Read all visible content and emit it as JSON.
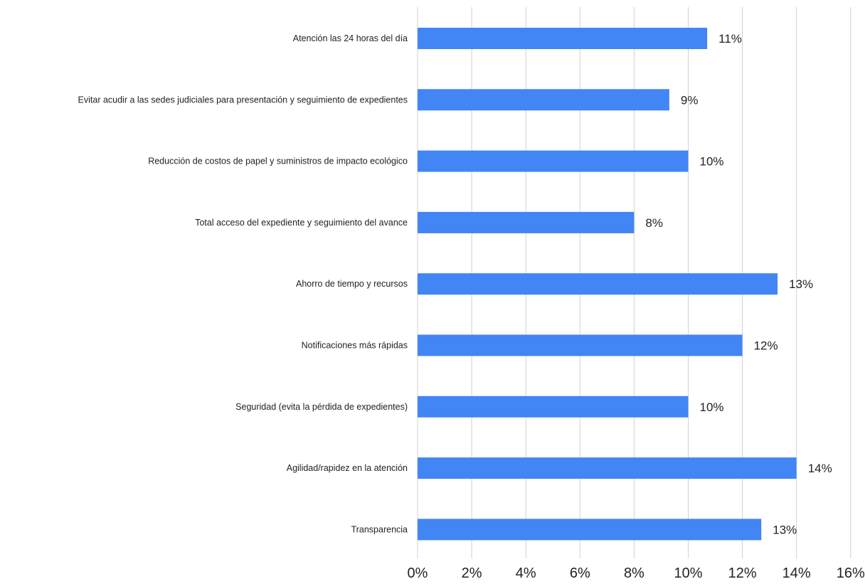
{
  "chart_data": {
    "type": "bar",
    "orientation": "horizontal",
    "title": "",
    "xlabel": "",
    "ylabel": "",
    "categories": [
      "Atención las 24 horas del día",
      "Evitar acudir a las sedes judiciales para presentación y seguimiento de expedientes",
      "Reducción de costos de papel y suministros de impacto ecológico",
      "Total acceso del expediente y seguimiento del avance",
      "Ahorro de tiempo y recursos",
      "Notificaciones más rápidas",
      "Seguridad (evita la pérdida de expedientes)",
      "Agilidad/rapidez en la atención",
      "Transparencia"
    ],
    "values": [
      10.7,
      9.3,
      10.0,
      8.0,
      13.3,
      12.0,
      10.0,
      14.0,
      12.7
    ],
    "data_labels": [
      "11%",
      "9%",
      "10%",
      "8%",
      "13%",
      "12%",
      "10%",
      "14%",
      "13%"
    ],
    "xlim": [
      0,
      16
    ],
    "x_ticks": [
      "0%",
      "2%",
      "4%",
      "6%",
      "8%",
      "10%",
      "12%",
      "14%",
      "16%"
    ],
    "x_tick_values": [
      0,
      2,
      4,
      6,
      8,
      10,
      12,
      14,
      16
    ],
    "grid": "vertical",
    "legend": "none",
    "bar_color": "#4285f4"
  }
}
